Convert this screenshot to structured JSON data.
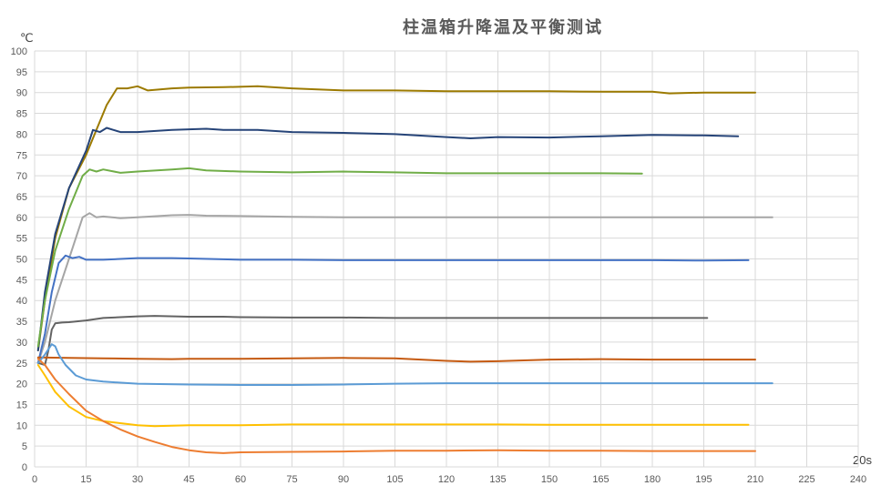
{
  "chart_data": {
    "type": "line",
    "title": "柱温箱升降温及平衡测试",
    "ylabel": "℃",
    "xlabel": "20s",
    "xlim": [
      0,
      240
    ],
    "ylim": [
      0,
      100
    ],
    "x_ticks": [
      0,
      15,
      30,
      45,
      60,
      75,
      90,
      105,
      120,
      135,
      150,
      165,
      180,
      195,
      210,
      225,
      240
    ],
    "y_ticks": [
      0,
      5,
      10,
      15,
      20,
      25,
      30,
      35,
      40,
      45,
      50,
      55,
      60,
      65,
      70,
      75,
      80,
      85,
      90,
      95,
      100
    ],
    "grid": true,
    "legend": "none",
    "series": [
      {
        "color": "#9c7a00",
        "x": [
          1,
          3,
          6,
          10,
          15,
          18,
          21,
          24,
          27,
          30,
          33,
          40,
          45,
          55,
          65,
          75,
          90,
          105,
          120,
          135,
          150,
          165,
          180,
          185,
          195,
          210
        ],
        "values": [
          28,
          40,
          55,
          67,
          75,
          81,
          87,
          91,
          91,
          91.5,
          90.5,
          91,
          91.2,
          91.3,
          91.5,
          91,
          90.5,
          90.5,
          90.3,
          90.3,
          90.3,
          90.2,
          90.2,
          89.8,
          90,
          90
        ]
      },
      {
        "color": "#264478",
        "x": [
          1,
          3,
          6,
          10,
          15,
          17,
          19,
          21,
          23,
          25,
          30,
          40,
          50,
          55,
          65,
          75,
          90,
          105,
          120,
          127,
          135,
          150,
          165,
          180,
          195,
          205
        ],
        "values": [
          28,
          42,
          56,
          67,
          76,
          81,
          80.5,
          81.5,
          81,
          80.5,
          80.5,
          81,
          81.3,
          81,
          81,
          80.5,
          80.3,
          80,
          79.3,
          79,
          79.3,
          79.2,
          79.5,
          79.8,
          79.7,
          79.5
        ]
      },
      {
        "color": "#70ad47",
        "x": [
          1,
          3,
          6,
          10,
          14,
          16,
          18,
          20,
          25,
          30,
          40,
          45,
          50,
          60,
          75,
          90,
          105,
          120,
          135,
          150,
          165,
          177
        ],
        "values": [
          29,
          40,
          52,
          62,
          70,
          71.5,
          71,
          71.5,
          70.7,
          71,
          71.5,
          71.8,
          71.3,
          71,
          70.8,
          71,
          70.8,
          70.6,
          70.6,
          70.6,
          70.6,
          70.5
        ]
      },
      {
        "color": "#a5a5a5",
        "x": [
          1,
          3,
          6,
          10,
          14,
          16,
          18,
          20,
          25,
          30,
          40,
          45,
          50,
          60,
          75,
          90,
          105,
          120,
          135,
          150,
          165,
          180,
          195,
          215
        ],
        "values": [
          25,
          30,
          40,
          50,
          60,
          61,
          60,
          60.2,
          59.8,
          60,
          60.5,
          60.6,
          60.4,
          60.3,
          60.1,
          60,
          60,
          60,
          60,
          60,
          60,
          60,
          60,
          60
        ]
      },
      {
        "color": "#4472c4",
        "x": [
          1,
          3,
          5,
          7,
          9,
          11,
          13,
          15,
          20,
          30,
          40,
          45,
          60,
          75,
          90,
          105,
          120,
          135,
          150,
          165,
          180,
          195,
          208
        ],
        "values": [
          25,
          32,
          42,
          49,
          50.8,
          50.2,
          50.5,
          49.8,
          49.8,
          50.2,
          50.2,
          50.1,
          49.8,
          49.8,
          49.7,
          49.7,
          49.7,
          49.7,
          49.7,
          49.7,
          49.7,
          49.6,
          49.7
        ]
      },
      {
        "color": "#636363",
        "x": [
          1,
          3,
          4,
          5,
          6,
          8,
          10,
          15,
          20,
          25,
          30,
          35,
          45,
          55,
          60,
          75,
          90,
          105,
          120,
          135,
          150,
          165,
          180,
          196
        ],
        "values": [
          25,
          24.5,
          28,
          33,
          34.5,
          34.7,
          34.8,
          35.2,
          35.8,
          36,
          36.2,
          36.3,
          36.1,
          36.1,
          36,
          35.9,
          35.9,
          35.8,
          35.8,
          35.8,
          35.8,
          35.8,
          35.8,
          35.8
        ]
      },
      {
        "color": "#c55a11",
        "x": [
          1,
          10,
          20,
          30,
          40,
          45,
          60,
          75,
          90,
          105,
          120,
          127,
          135,
          150,
          165,
          180,
          195,
          210
        ],
        "values": [
          26.3,
          26.2,
          26.1,
          26,
          25.9,
          26,
          26,
          26.1,
          26.2,
          26.1,
          25.5,
          25.3,
          25.4,
          25.8,
          25.9,
          25.8,
          25.8,
          25.8
        ]
      },
      {
        "color": "#5b9bd5",
        "x": [
          1,
          3,
          5,
          6,
          7,
          9,
          12,
          15,
          20,
          30,
          45,
          60,
          75,
          90,
          105,
          120,
          135,
          150,
          165,
          180,
          195,
          215
        ],
        "values": [
          25,
          27,
          29.5,
          29,
          27,
          24.5,
          22,
          21,
          20.5,
          20,
          19.8,
          19.7,
          19.7,
          19.8,
          20,
          20.1,
          20.1,
          20.1,
          20.1,
          20.1,
          20.1,
          20.1
        ]
      },
      {
        "color": "#ffc000",
        "x": [
          1,
          3,
          6,
          10,
          15,
          20,
          25,
          30,
          35,
          45,
          60,
          75,
          90,
          105,
          120,
          135,
          150,
          165,
          180,
          195,
          208
        ],
        "values": [
          24.5,
          22,
          18,
          14.5,
          12,
          11,
          10.5,
          10,
          9.8,
          10,
          10,
          10.2,
          10.2,
          10.2,
          10.2,
          10.2,
          10.1,
          10.1,
          10.1,
          10.1,
          10.1
        ]
      },
      {
        "color": "#ed7d31",
        "x": [
          1,
          3,
          6,
          10,
          15,
          20,
          25,
          30,
          35,
          40,
          45,
          50,
          55,
          60,
          75,
          90,
          105,
          120,
          135,
          150,
          165,
          180,
          195,
          210
        ],
        "values": [
          26,
          24.5,
          21,
          17.5,
          13.5,
          11,
          9,
          7.3,
          6,
          4.8,
          4,
          3.5,
          3.3,
          3.5,
          3.6,
          3.7,
          3.9,
          3.9,
          4,
          3.9,
          3.9,
          3.8,
          3.8,
          3.8
        ]
      }
    ]
  }
}
